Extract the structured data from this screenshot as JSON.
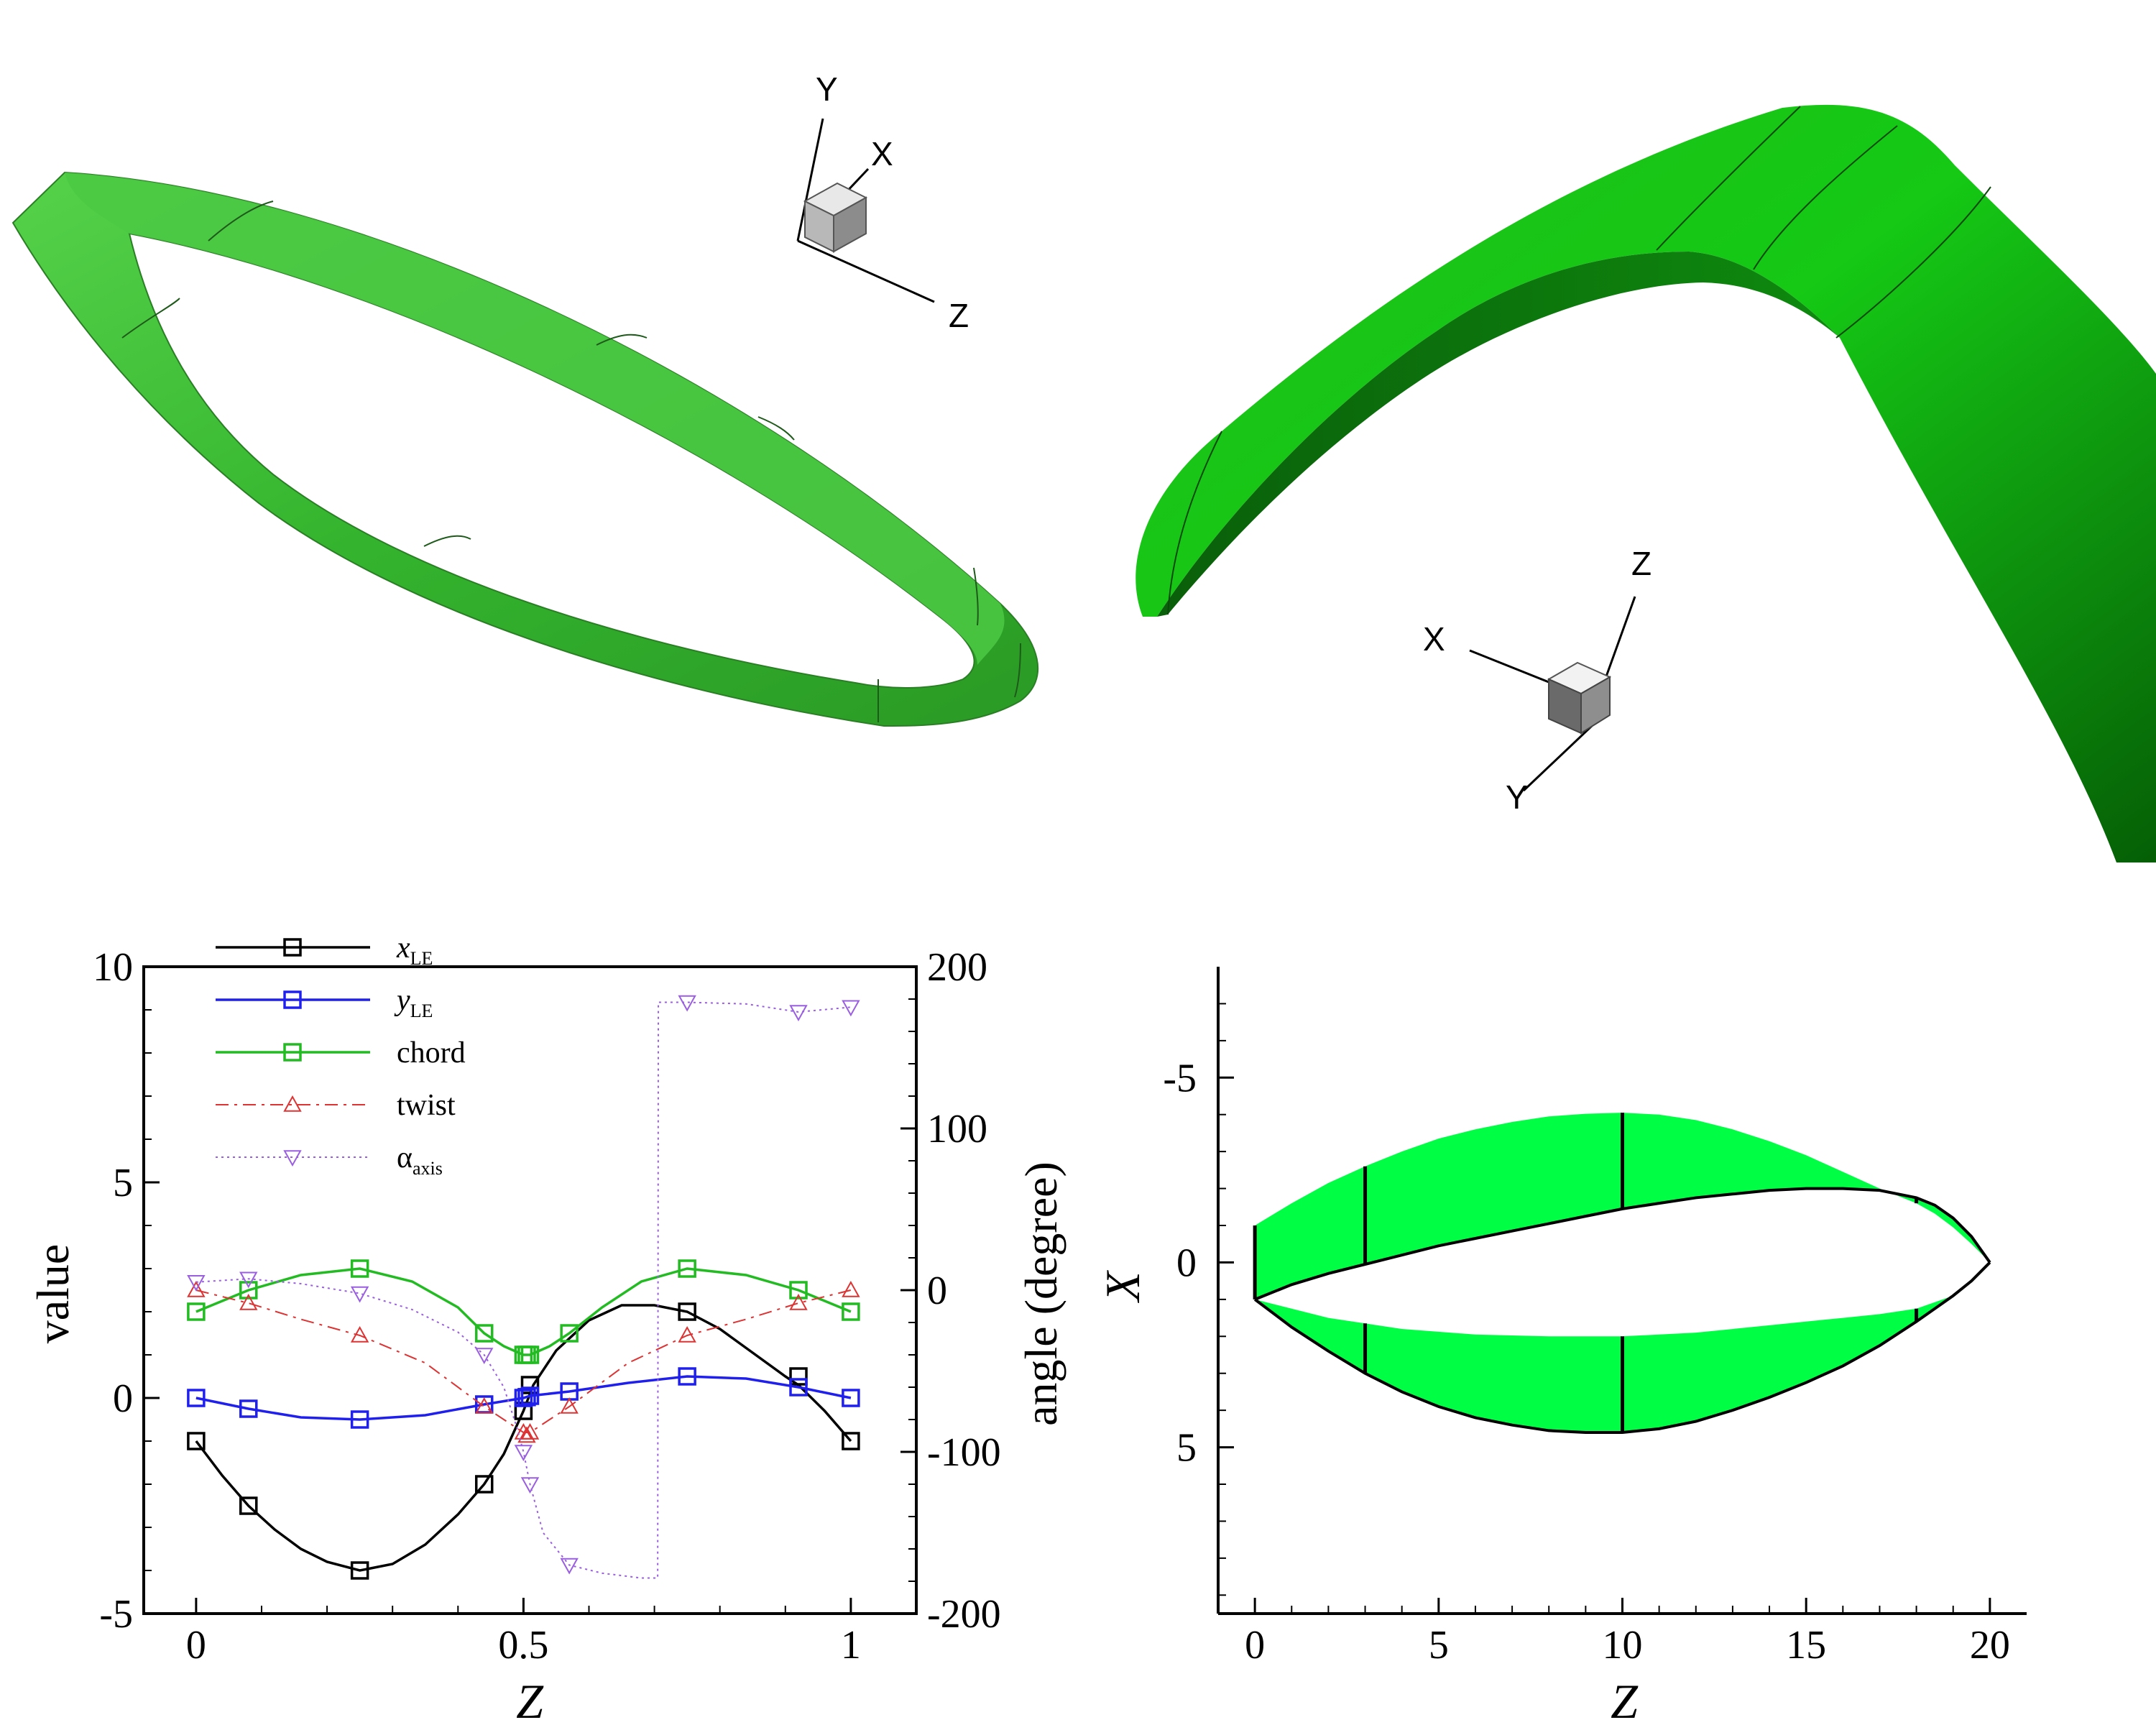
{
  "views3d": {
    "left_triad": {
      "x": "X",
      "y": "Y",
      "z": "Z"
    },
    "right_triad": {
      "x": "X",
      "y": "Y",
      "z": "Z"
    },
    "surface_color": "#2fb02f"
  },
  "chart_data": [
    {
      "type": "line",
      "xlabel": "Z",
      "ylabel": "value",
      "y2label": "angle (degree)",
      "xlim": [
        -0.08,
        1.1
      ],
      "ylim": [
        -5,
        10
      ],
      "y2lim": [
        -200,
        200
      ],
      "xticks": [
        "0",
        "0.5",
        "1"
      ],
      "yticks": [
        "-5",
        "0",
        "5",
        "10"
      ],
      "y2ticks": [
        "-200",
        "-100",
        "0",
        "100",
        "200"
      ],
      "legend_position": "top-left",
      "series": [
        {
          "name": "x",
          "name_sub": "LE",
          "axis": "left",
          "color": "#000000",
          "style": "solid",
          "marker": "square",
          "curve_x": [
            0,
            0.04,
            0.08,
            0.12,
            0.16,
            0.2,
            0.25,
            0.3,
            0.35,
            0.4,
            0.44,
            0.47,
            0.5,
            0.505,
            0.51,
            0.515,
            0.55,
            0.6,
            0.65,
            0.7,
            0.75,
            0.8,
            0.85,
            0.9,
            0.92,
            0.96,
            1.0
          ],
          "curve_y": [
            -1.0,
            -1.8,
            -2.5,
            -3.05,
            -3.5,
            -3.8,
            -4.0,
            -3.85,
            -3.4,
            -2.7,
            -2.0,
            -1.3,
            -0.3,
            -0.1,
            0.1,
            0.3,
            1.1,
            1.8,
            2.15,
            2.15,
            2.0,
            1.6,
            1.05,
            0.5,
            0.3,
            -0.3,
            -1.0
          ],
          "markers_x": [
            0,
            0.08,
            0.25,
            0.44,
            0.5,
            0.51,
            0.75,
            0.92,
            1.0
          ],
          "markers_y": [
            -1.0,
            -2.5,
            -4.0,
            -2.0,
            -0.3,
            0.3,
            2.0,
            0.5,
            -1.0
          ]
        },
        {
          "name": "y",
          "name_sub": "LE",
          "axis": "left",
          "color": "#2020ee",
          "style": "solid",
          "marker": "square",
          "curve_x": [
            0,
            0.08,
            0.16,
            0.25,
            0.35,
            0.44,
            0.5,
            0.51,
            0.57,
            0.66,
            0.75,
            0.84,
            0.92,
            1.0
          ],
          "curve_y": [
            0.0,
            -0.25,
            -0.45,
            -0.5,
            -0.4,
            -0.15,
            0.0,
            0.05,
            0.15,
            0.35,
            0.5,
            0.45,
            0.25,
            0.0
          ],
          "markers_x": [
            0,
            0.08,
            0.25,
            0.44,
            0.5,
            0.505,
            0.51,
            0.57,
            0.75,
            0.92,
            1.0
          ],
          "markers_y": [
            0.0,
            -0.25,
            -0.5,
            -0.15,
            0.0,
            0.02,
            0.05,
            0.15,
            0.5,
            0.25,
            0.0
          ]
        },
        {
          "name": "chord",
          "axis": "left",
          "color": "#22bb22",
          "style": "solid",
          "marker": "square",
          "curve_x": [
            0,
            0.08,
            0.16,
            0.25,
            0.33,
            0.4,
            0.44,
            0.47,
            0.5,
            0.51,
            0.54,
            0.57,
            0.62,
            0.68,
            0.75,
            0.84,
            0.92,
            1.0
          ],
          "curve_y": [
            2.0,
            2.5,
            2.85,
            3.0,
            2.7,
            2.1,
            1.5,
            1.2,
            1.0,
            1.0,
            1.2,
            1.5,
            2.1,
            2.7,
            3.0,
            2.85,
            2.5,
            2.0
          ],
          "markers_x": [
            0,
            0.08,
            0.25,
            0.44,
            0.5,
            0.505,
            0.51,
            0.57,
            0.75,
            0.92,
            1.0
          ],
          "markers_y": [
            2.0,
            2.5,
            3.0,
            1.5,
            1.0,
            1.0,
            1.0,
            1.5,
            3.0,
            2.5,
            2.0
          ]
        },
        {
          "name": "twist",
          "axis": "right",
          "color": "#dd3333",
          "style": "dashdot",
          "marker": "triangle-up",
          "curve_x": [
            0,
            0.08,
            0.16,
            0.25,
            0.35,
            0.44,
            0.5,
            0.51,
            0.57,
            0.66,
            0.75,
            0.84,
            0.92,
            1.0
          ],
          "curve_y": [
            0,
            -8,
            -18,
            -28,
            -45,
            -72,
            -88,
            -88,
            -72,
            -45,
            -28,
            -18,
            -8,
            0
          ],
          "markers_x": [
            0,
            0.08,
            0.25,
            0.44,
            0.5,
            0.505,
            0.51,
            0.57,
            0.75,
            0.92,
            1.0
          ],
          "markers_y": [
            0,
            -8,
            -28,
            -72,
            -88,
            -90,
            -88,
            -72,
            -28,
            -8,
            0
          ]
        },
        {
          "name": "α",
          "name_sub": "axis",
          "axis": "right",
          "color": "#9a5fe0",
          "style": "dotted",
          "marker": "triangle-down",
          "curve_x": [
            0,
            0.08,
            0.16,
            0.25,
            0.33,
            0.4,
            0.44,
            0.47,
            0.49,
            0.5,
            0.505,
            0.51,
            0.53,
            0.57,
            0.62,
            0.68,
            0.705,
            0.706,
            0.73,
            0.75,
            0.84,
            0.92,
            1.0
          ],
          "curve_y": [
            5,
            7,
            4,
            -2,
            -12,
            -26,
            -40,
            -60,
            -85,
            -100,
            -110,
            -120,
            -150,
            -170,
            -175,
            -178,
            -178,
            178,
            178,
            178,
            177,
            172,
            175
          ],
          "markers_x": [
            0,
            0.08,
            0.25,
            0.44,
            0.5,
            0.51,
            0.57,
            0.75,
            0.92,
            1.0
          ],
          "markers_y": [
            5,
            7,
            -2,
            -40,
            -100,
            -120,
            -170,
            178,
            172,
            175
          ]
        }
      ]
    },
    {
      "type": "area",
      "xlabel": "Z",
      "ylabel": "X",
      "y_inverted": true,
      "xlim": [
        -1,
        21
      ],
      "ylim": [
        -8,
        9.5
      ],
      "xticks": [
        "0",
        "5",
        "10",
        "15",
        "20"
      ],
      "yticks": [
        "-5",
        "0",
        "5"
      ],
      "fill_color": "#00ff44",
      "edge_color": "#000000",
      "upper_outer": {
        "z": [
          0,
          1,
          2,
          3,
          4,
          5,
          6,
          7,
          8,
          9,
          10,
          11,
          12,
          13,
          14,
          15,
          16,
          17,
          18,
          18.5,
          19,
          19.5,
          20
        ],
        "x": [
          -1,
          -1.6,
          -2.15,
          -2.6,
          -3.0,
          -3.35,
          -3.6,
          -3.8,
          -3.95,
          -4.02,
          -4.05,
          -4.0,
          -3.85,
          -3.6,
          -3.28,
          -2.9,
          -2.45,
          -2.0,
          -1.6,
          -1.32,
          -0.95,
          -0.5,
          0
        ]
      },
      "upper_inner": {
        "z": [
          0,
          1,
          2,
          3,
          4,
          5,
          6,
          7,
          8,
          9,
          10,
          11,
          12,
          13,
          14,
          15,
          16,
          17,
          18,
          18.5,
          19,
          19.5,
          20
        ],
        "x": [
          1,
          0.6,
          0.3,
          0.05,
          -0.2,
          -0.45,
          -0.65,
          -0.85,
          -1.05,
          -1.25,
          -1.45,
          -1.6,
          -1.75,
          -1.85,
          -1.95,
          -2.0,
          -2.0,
          -1.95,
          -1.75,
          -1.55,
          -1.2,
          -0.7,
          0
        ]
      },
      "lower_outer": {
        "z": [
          0,
          1,
          2,
          3,
          4,
          5,
          6,
          7,
          8,
          9,
          10,
          11,
          12,
          13,
          14,
          15,
          16,
          17,
          18,
          18.5,
          19,
          19.5,
          20
        ],
        "x": [
          1,
          1.75,
          2.4,
          3.0,
          3.5,
          3.9,
          4.2,
          4.4,
          4.55,
          4.6,
          4.6,
          4.5,
          4.3,
          4.0,
          3.65,
          3.25,
          2.8,
          2.25,
          1.6,
          1.25,
          0.9,
          0.5,
          0
        ]
      },
      "lower_inner": {
        "z": [
          0,
          2,
          4,
          6,
          8,
          10,
          12,
          14,
          16,
          17,
          18,
          19,
          20
        ],
        "x": [
          1,
          1.5,
          1.8,
          1.95,
          2.0,
          2.0,
          1.9,
          1.7,
          1.5,
          1.4,
          1.25,
          0.9,
          0
        ]
      },
      "cut_lines_z": [
        0,
        3,
        10,
        18
      ]
    }
  ]
}
